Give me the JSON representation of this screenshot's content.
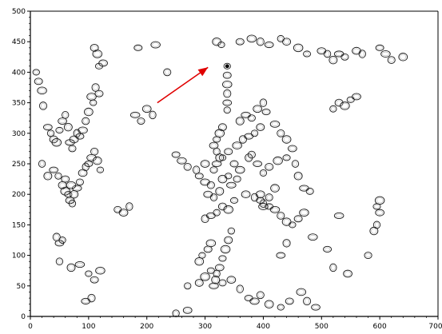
{
  "chart_data": {
    "type": "scatter",
    "title": "",
    "xlabel": "",
    "ylabel": "",
    "xlim": [
      0,
      700
    ],
    "ylim": [
      0,
      500
    ],
    "xticks": [
      "0",
      "100",
      "200",
      "300",
      "400",
      "500",
      "600",
      "700"
    ],
    "yticks": [
      "0",
      "50",
      "100",
      "150",
      "200",
      "250",
      "300",
      "350",
      "400",
      "450",
      "500"
    ],
    "grid": false,
    "legend": "none",
    "colors": {
      "points": "#1a1a1a",
      "arrow": "#e00000",
      "axis": "#000000"
    },
    "annotation": {
      "type": "arrow",
      "from": [
        218,
        350
      ],
      "to": [
        305,
        408
      ]
    },
    "points": [
      [
        10,
        400
      ],
      [
        14,
        385
      ],
      [
        20,
        370
      ],
      [
        22,
        345
      ],
      [
        30,
        310
      ],
      [
        35,
        300
      ],
      [
        40,
        290
      ],
      [
        45,
        285
      ],
      [
        50,
        305
      ],
      [
        55,
        320
      ],
      [
        60,
        330
      ],
      [
        65,
        310
      ],
      [
        68,
        285
      ],
      [
        72,
        275
      ],
      [
        75,
        290
      ],
      [
        80,
        300
      ],
      [
        85,
        295
      ],
      [
        90,
        305
      ],
      [
        95,
        320
      ],
      [
        100,
        335
      ],
      [
        108,
        350
      ],
      [
        118,
        365
      ],
      [
        105,
        360
      ],
      [
        112,
        375
      ],
      [
        40,
        240
      ],
      [
        48,
        230
      ],
      [
        55,
        215
      ],
      [
        60,
        205
      ],
      [
        65,
        200
      ],
      [
        68,
        190
      ],
      [
        72,
        185
      ],
      [
        75,
        200
      ],
      [
        80,
        210
      ],
      [
        85,
        220
      ],
      [
        90,
        235
      ],
      [
        95,
        245
      ],
      [
        100,
        250
      ],
      [
        105,
        260
      ],
      [
        110,
        270
      ],
      [
        115,
        255
      ],
      [
        120,
        240
      ],
      [
        60,
        225
      ],
      [
        70,
        215
      ],
      [
        45,
        130
      ],
      [
        50,
        120
      ],
      [
        55,
        125
      ],
      [
        110,
        440
      ],
      [
        115,
        430
      ],
      [
        118,
        410
      ],
      [
        125,
        415
      ],
      [
        20,
        250
      ],
      [
        30,
        230
      ],
      [
        180,
        330
      ],
      [
        190,
        320
      ],
      [
        200,
        340
      ],
      [
        210,
        330
      ],
      [
        185,
        440
      ],
      [
        215,
        445
      ],
      [
        235,
        400
      ],
      [
        320,
        450
      ],
      [
        328,
        445
      ],
      [
        360,
        450
      ],
      [
        380,
        455
      ],
      [
        395,
        450
      ],
      [
        410,
        445
      ],
      [
        430,
        455
      ],
      [
        440,
        450
      ],
      [
        460,
        440
      ],
      [
        475,
        430
      ],
      [
        500,
        435
      ],
      [
        510,
        430
      ],
      [
        520,
        420
      ],
      [
        530,
        430
      ],
      [
        540,
        425
      ],
      [
        560,
        435
      ],
      [
        570,
        430
      ],
      [
        600,
        440
      ],
      [
        610,
        430
      ],
      [
        620,
        420
      ],
      [
        640,
        425
      ],
      [
        338,
        410
      ],
      [
        338,
        395
      ],
      [
        338,
        380
      ],
      [
        338,
        365
      ],
      [
        338,
        350
      ],
      [
        338,
        338
      ],
      [
        330,
        310
      ],
      [
        325,
        300
      ],
      [
        320,
        290
      ],
      [
        315,
        280
      ],
      [
        320,
        270
      ],
      [
        325,
        260
      ],
      [
        320,
        250
      ],
      [
        315,
        240
      ],
      [
        300,
        250
      ],
      [
        285,
        240
      ],
      [
        290,
        230
      ],
      [
        300,
        220
      ],
      [
        310,
        215
      ],
      [
        330,
        225
      ],
      [
        340,
        230
      ],
      [
        350,
        250
      ],
      [
        360,
        240
      ],
      [
        375,
        260
      ],
      [
        390,
        250
      ],
      [
        400,
        235
      ],
      [
        410,
        245
      ],
      [
        425,
        255
      ],
      [
        440,
        260
      ],
      [
        450,
        275
      ],
      [
        455,
        250
      ],
      [
        460,
        230
      ],
      [
        470,
        210
      ],
      [
        480,
        205
      ],
      [
        395,
        200
      ],
      [
        400,
        185
      ],
      [
        410,
        180
      ],
      [
        420,
        175
      ],
      [
        430,
        165
      ],
      [
        440,
        155
      ],
      [
        450,
        150
      ],
      [
        460,
        160
      ],
      [
        470,
        170
      ],
      [
        440,
        120
      ],
      [
        430,
        100
      ],
      [
        345,
        140
      ],
      [
        340,
        125
      ],
      [
        335,
        110
      ],
      [
        330,
        95
      ],
      [
        325,
        80
      ],
      [
        320,
        70
      ],
      [
        318,
        60
      ],
      [
        315,
        50
      ],
      [
        330,
        55
      ],
      [
        345,
        60
      ],
      [
        360,
        45
      ],
      [
        375,
        30
      ],
      [
        385,
        25
      ],
      [
        395,
        35
      ],
      [
        410,
        20
      ],
      [
        430,
        15
      ],
      [
        445,
        25
      ],
      [
        465,
        40
      ],
      [
        475,
        25
      ],
      [
        490,
        15
      ],
      [
        270,
        50
      ],
      [
        290,
        55
      ],
      [
        300,
        65
      ],
      [
        310,
        75
      ],
      [
        270,
        10
      ],
      [
        250,
        5
      ],
      [
        360,
        320
      ],
      [
        370,
        330
      ],
      [
        380,
        325
      ],
      [
        390,
        340
      ],
      [
        400,
        350
      ],
      [
        405,
        335
      ],
      [
        420,
        315
      ],
      [
        430,
        300
      ],
      [
        440,
        290
      ],
      [
        330,
        260
      ],
      [
        340,
        270
      ],
      [
        355,
        280
      ],
      [
        365,
        290
      ],
      [
        375,
        295
      ],
      [
        385,
        300
      ],
      [
        395,
        310
      ],
      [
        600,
        190
      ],
      [
        595,
        180
      ],
      [
        600,
        170
      ],
      [
        595,
        150
      ],
      [
        590,
        140
      ],
      [
        530,
        165
      ],
      [
        580,
        100
      ],
      [
        545,
        70
      ],
      [
        520,
        80
      ],
      [
        510,
        110
      ],
      [
        485,
        130
      ],
      [
        380,
        265
      ],
      [
        290,
        90
      ],
      [
        295,
        100
      ],
      [
        305,
        110
      ],
      [
        310,
        120
      ],
      [
        300,
        160
      ],
      [
        310,
        165
      ],
      [
        320,
        170
      ],
      [
        330,
        180
      ],
      [
        340,
        175
      ],
      [
        350,
        190
      ],
      [
        305,
        200
      ],
      [
        315,
        195
      ],
      [
        325,
        205
      ],
      [
        345,
        215
      ],
      [
        355,
        225
      ],
      [
        370,
        200
      ],
      [
        385,
        195
      ],
      [
        395,
        190
      ],
      [
        400,
        180
      ],
      [
        410,
        195
      ],
      [
        420,
        210
      ],
      [
        100,
        70
      ],
      [
        110,
        60
      ],
      [
        120,
        75
      ],
      [
        105,
        30
      ],
      [
        95,
        25
      ],
      [
        520,
        340
      ],
      [
        530,
        350
      ],
      [
        540,
        345
      ],
      [
        550,
        355
      ],
      [
        560,
        360
      ],
      [
        50,
        90
      ],
      [
        70,
        80
      ],
      [
        85,
        85
      ],
      [
        150,
        175
      ],
      [
        160,
        170
      ],
      [
        170,
        180
      ],
      [
        250,
        265
      ],
      [
        260,
        255
      ],
      [
        270,
        245
      ]
    ]
  }
}
